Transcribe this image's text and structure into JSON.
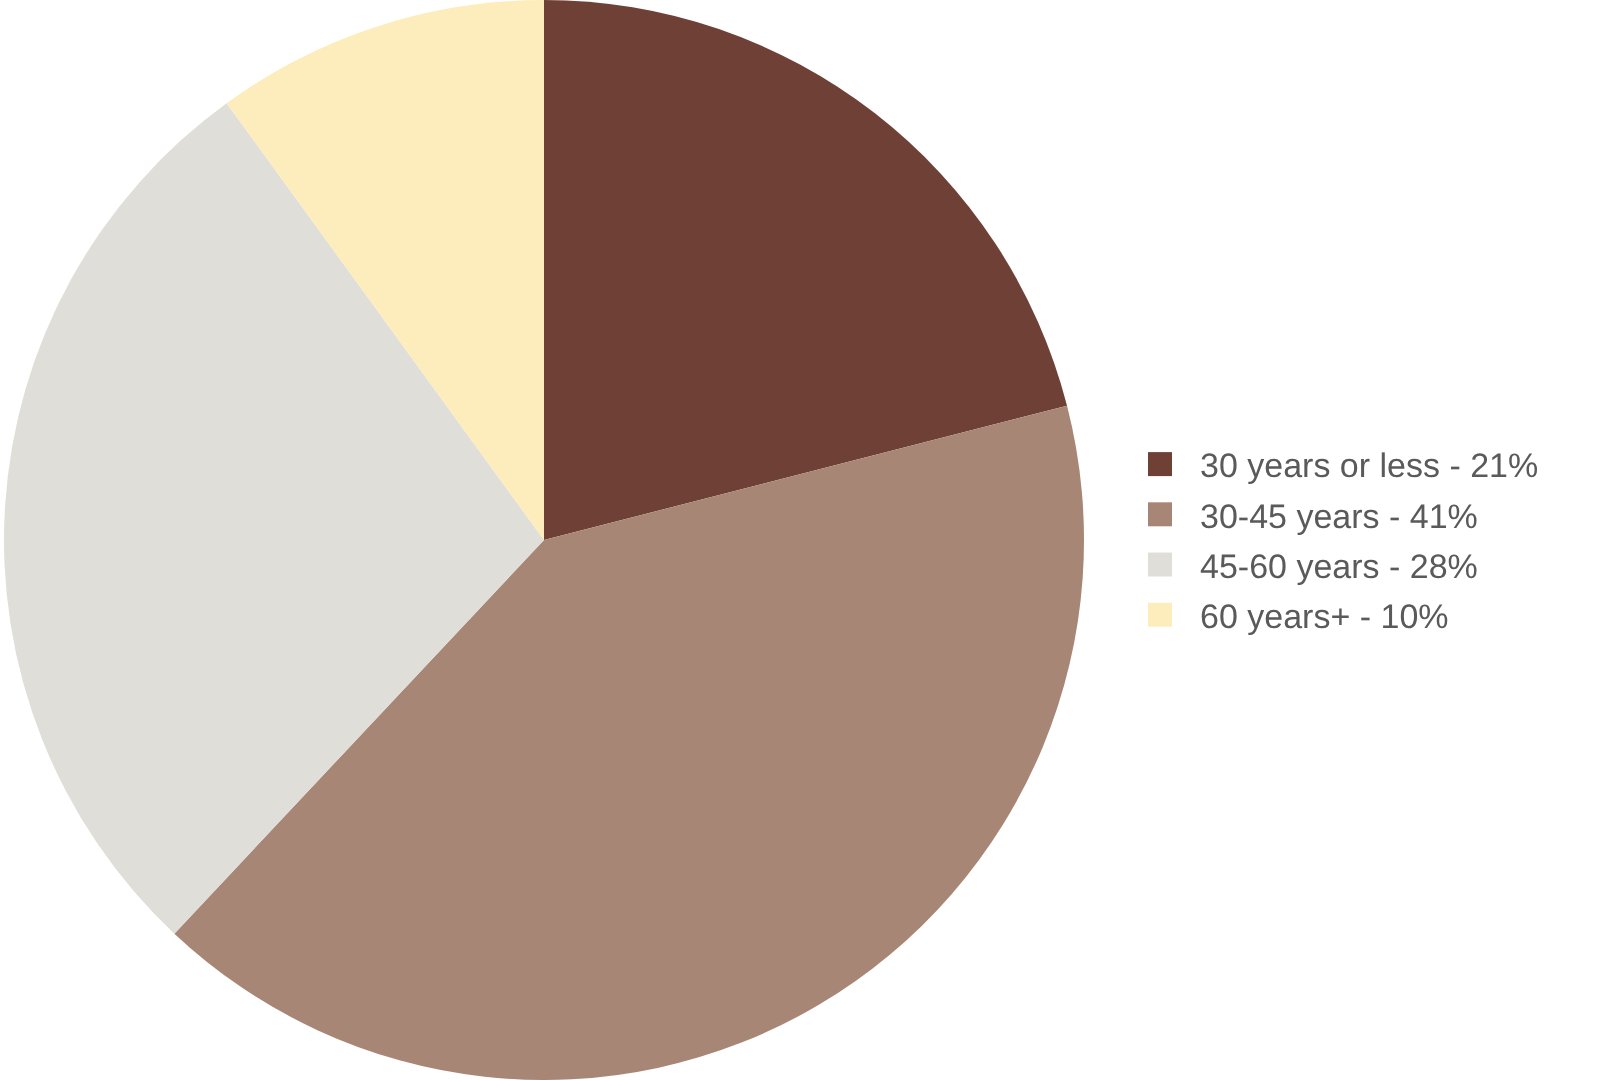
{
  "chart_data": {
    "type": "pie",
    "categories": [
      "30 years or less - 21%",
      "30-45 years - 41%",
      "45-60 years - 28%",
      "60 years+ - 10%"
    ],
    "values": [
      21,
      41,
      28,
      10
    ],
    "colors": [
      "#6f4136",
      "#a88676",
      "#e0ded9",
      "#fdedbd"
    ],
    "legend": "right"
  }
}
